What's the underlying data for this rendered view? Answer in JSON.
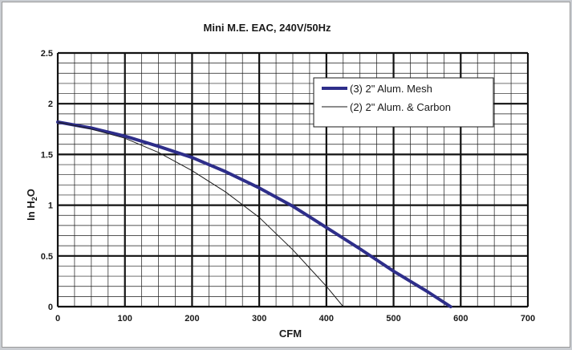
{
  "chart_data": {
    "type": "line",
    "title": "Mini M.E. EAC, 240V/50Hz",
    "xlabel": "CFM",
    "ylabel_main": "In H",
    "ylabel_sub": "2",
    "ylabel_tail": "O",
    "xlim": [
      0,
      700
    ],
    "ylim": [
      0,
      2.5
    ],
    "x_ticks": [
      0,
      100,
      200,
      300,
      400,
      500,
      600,
      700
    ],
    "y_ticks": [
      0,
      0.5,
      1,
      1.5,
      2,
      2.5
    ],
    "x_tick_labels": [
      "0",
      "100",
      "200",
      "300",
      "400",
      "500",
      "600",
      "700"
    ],
    "y_tick_labels": [
      "0",
      "0.5",
      "1",
      "1.5",
      "2",
      "2.5"
    ],
    "x_minor_step": 25,
    "y_minor_step": 0.1,
    "grid": true,
    "legend_position": "top-right",
    "series": [
      {
        "name": "(3) 2\" Alum. Mesh",
        "color": "#2e2e8a",
        "width": 4,
        "x": [
          0,
          50,
          100,
          150,
          200,
          250,
          300,
          350,
          400,
          450,
          500,
          550,
          585
        ],
        "y": [
          1.82,
          1.76,
          1.68,
          1.58,
          1.47,
          1.33,
          1.17,
          0.99,
          0.78,
          0.57,
          0.35,
          0.15,
          0
        ]
      },
      {
        "name": "(2) 2\" Alum. & Carbon",
        "color": "#1a1a1a",
        "width": 1,
        "x": [
          0,
          50,
          100,
          150,
          200,
          250,
          300,
          350,
          400,
          425
        ],
        "y": [
          1.82,
          1.75,
          1.66,
          1.52,
          1.34,
          1.13,
          0.88,
          0.56,
          0.2,
          0
        ]
      }
    ]
  }
}
